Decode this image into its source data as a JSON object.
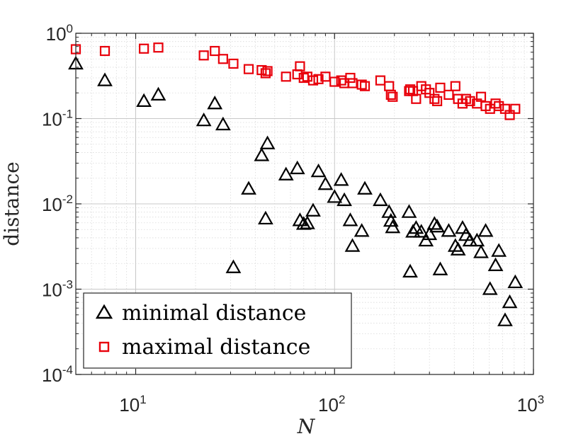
{
  "chart_data": {
    "type": "scatter",
    "xscale": "log",
    "yscale": "log",
    "xlim": [
      5,
      1000
    ],
    "ylim": [
      0.0001,
      1
    ],
    "xlabel": "N",
    "ylabel": "distance",
    "grid": true,
    "minor_grid": true,
    "legend_position": "bottom-left",
    "x_ticks": [
      {
        "value": 10,
        "base": "10",
        "exp": "1"
      },
      {
        "value": 100,
        "base": "10",
        "exp": "2"
      },
      {
        "value": 1000,
        "base": "10",
        "exp": "3"
      }
    ],
    "y_ticks": [
      {
        "value": 0.0001,
        "base": "10",
        "exp": "-4"
      },
      {
        "value": 0.001,
        "base": "10",
        "exp": "-3"
      },
      {
        "value": 0.01,
        "base": "10",
        "exp": "-2"
      },
      {
        "value": 0.1,
        "base": "10",
        "exp": "-1"
      },
      {
        "value": 1,
        "base": "10",
        "exp": "0"
      }
    ],
    "series": [
      {
        "name": "minimal distance",
        "marker": "triangle",
        "color": "#000000",
        "points": [
          [
            5,
            0.44
          ],
          [
            7,
            0.28
          ],
          [
            11,
            0.16
          ],
          [
            13,
            0.19
          ],
          [
            22,
            0.095
          ],
          [
            25,
            0.15
          ],
          [
            27.5,
            0.085
          ],
          [
            31,
            0.0018
          ],
          [
            37,
            0.015
          ],
          [
            43,
            0.037
          ],
          [
            45,
            0.0067
          ],
          [
            46,
            0.051
          ],
          [
            57,
            0.022
          ],
          [
            65,
            0.026
          ],
          [
            67,
            0.0064
          ],
          [
            70,
            0.0058
          ],
          [
            73,
            0.0059
          ],
          [
            78,
            0.0083
          ],
          [
            83,
            0.024
          ],
          [
            90,
            0.017
          ],
          [
            100,
            0.012
          ],
          [
            108,
            0.019
          ],
          [
            112,
            0.011
          ],
          [
            120,
            0.0064
          ],
          [
            123,
            0.0032
          ],
          [
            137,
            0.0048
          ],
          [
            142,
            0.015
          ],
          [
            170,
            0.011
          ],
          [
            188,
            0.008
          ],
          [
            192,
            0.0063
          ],
          [
            196,
            0.0053
          ],
          [
            237,
            0.008
          ],
          [
            240,
            0.0016
          ],
          [
            248,
            0.0047
          ],
          [
            257,
            0.0052
          ],
          [
            273,
            0.0047
          ],
          [
            288,
            0.0037
          ],
          [
            300,
            0.0044
          ],
          [
            318,
            0.0058
          ],
          [
            328,
            0.0054
          ],
          [
            340,
            0.0017
          ],
          [
            375,
            0.0048
          ],
          [
            405,
            0.0032
          ],
          [
            418,
            0.0029
          ],
          [
            440,
            0.0052
          ],
          [
            458,
            0.0043
          ],
          [
            480,
            0.0037
          ],
          [
            520,
            0.0037
          ],
          [
            545,
            0.0027
          ],
          [
            575,
            0.0048
          ],
          [
            605,
            0.001
          ],
          [
            645,
            0.0019
          ],
          [
            670,
            0.0028
          ],
          [
            720,
            0.00043
          ],
          [
            760,
            0.0007
          ],
          [
            810,
            0.0012
          ]
        ]
      },
      {
        "name": "maximal distance",
        "marker": "square",
        "color": "#e8000b",
        "points": [
          [
            5,
            0.65
          ],
          [
            7,
            0.62
          ],
          [
            11,
            0.66
          ],
          [
            13,
            0.68
          ],
          [
            22,
            0.55
          ],
          [
            25,
            0.62
          ],
          [
            27.5,
            0.5
          ],
          [
            31,
            0.44
          ],
          [
            37,
            0.38
          ],
          [
            43,
            0.37
          ],
          [
            45,
            0.34
          ],
          [
            46,
            0.36
          ],
          [
            57,
            0.31
          ],
          [
            65,
            0.33
          ],
          [
            67,
            0.41
          ],
          [
            70,
            0.3
          ],
          [
            73,
            0.31
          ],
          [
            78,
            0.28
          ],
          [
            83,
            0.29
          ],
          [
            90,
            0.31
          ],
          [
            100,
            0.27
          ],
          [
            108,
            0.28
          ],
          [
            112,
            0.26
          ],
          [
            120,
            0.3
          ],
          [
            123,
            0.26
          ],
          [
            137,
            0.25
          ],
          [
            142,
            0.24
          ],
          [
            170,
            0.28
          ],
          [
            188,
            0.24
          ],
          [
            192,
            0.19
          ],
          [
            196,
            0.18
          ],
          [
            237,
            0.21
          ],
          [
            240,
            0.22
          ],
          [
            248,
            0.21
          ],
          [
            257,
            0.17
          ],
          [
            273,
            0.24
          ],
          [
            288,
            0.22
          ],
          [
            300,
            0.2
          ],
          [
            318,
            0.17
          ],
          [
            328,
            0.16
          ],
          [
            340,
            0.23
          ],
          [
            375,
            0.19
          ],
          [
            405,
            0.24
          ],
          [
            418,
            0.17
          ],
          [
            440,
            0.15
          ],
          [
            458,
            0.17
          ],
          [
            480,
            0.16
          ],
          [
            520,
            0.15
          ],
          [
            545,
            0.18
          ],
          [
            575,
            0.14
          ],
          [
            605,
            0.13
          ],
          [
            645,
            0.15
          ],
          [
            670,
            0.14
          ],
          [
            720,
            0.13
          ],
          [
            760,
            0.11
          ],
          [
            810,
            0.13
          ]
        ]
      }
    ]
  }
}
